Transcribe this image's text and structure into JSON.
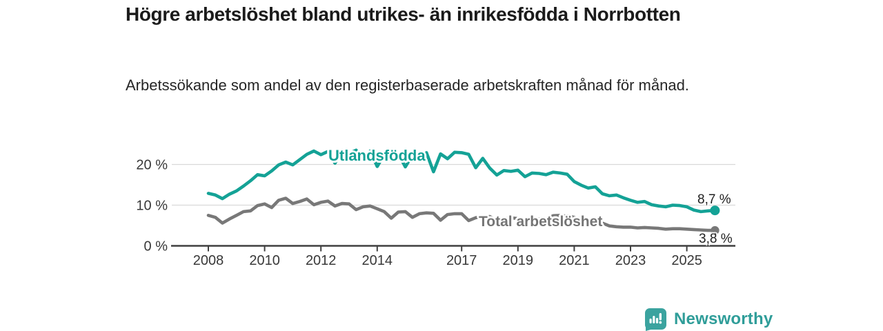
{
  "header": {
    "title": "Högre arbetslöshet bland utrikes- än inrikesfödda i Norrbotten",
    "subtitle": "Arbetssökande som andel av den registerbaserade arbetskraften månad för månad."
  },
  "colors": {
    "series1": "#14a296",
    "series2": "#787878",
    "grid": "#d9d9d9",
    "axis": "#3f3f3f",
    "tick_text": "#383838",
    "brand": "#2f9d99"
  },
  "chart_data": {
    "type": "line",
    "title": "Högre arbetslöshet bland utrikes- än inrikesfödda i Norrbotten",
    "xlabel": "",
    "ylabel": "",
    "grid": true,
    "legend_position": "inline-labels",
    "x_start": 2008,
    "x_step": 0.25,
    "x_ticks": [
      2008,
      2010,
      2012,
      2014,
      2017,
      2019,
      2021,
      2023,
      2025
    ],
    "y_ticks": [
      {
        "value": 0,
        "label": "0 %"
      },
      {
        "value": 10,
        "label": "10 %"
      },
      {
        "value": 20,
        "label": "20 %"
      }
    ],
    "ylim": [
      0,
      25.5
    ],
    "series": [
      {
        "name": "Utlandsfödda",
        "color": "#14a296",
        "end_label": "8,7 %",
        "end_value": 8.7,
        "values": [
          12.9,
          12.5,
          11.6,
          12.7,
          13.5,
          14.7,
          16.0,
          17.5,
          17.2,
          18.4,
          19.9,
          20.6,
          19.9,
          21.2,
          22.5,
          23.3,
          22.4,
          23.2,
          20.3,
          23.4,
          22.7,
          23.5,
          21.0,
          23.3,
          19.5,
          22.4,
          21.0,
          22.6,
          19.4,
          22.3,
          21.2,
          22.9,
          18.2,
          22.6,
          21.4,
          23.0,
          22.9,
          22.5,
          19.2,
          21.5,
          19.1,
          17.4,
          18.5,
          18.3,
          18.6,
          17.0,
          17.9,
          17.8,
          17.5,
          18.1,
          17.9,
          17.6,
          15.8,
          14.9,
          14.2,
          14.5,
          12.8,
          12.3,
          12.5,
          11.8,
          11.2,
          10.7,
          10.9,
          10.1,
          9.8,
          9.6,
          10.0,
          9.9,
          9.6,
          8.8,
          8.4,
          8.6,
          8.7
        ]
      },
      {
        "name": "Total arbetslöshet",
        "color": "#787878",
        "end_label": "3,8 %",
        "end_value": 3.8,
        "values": [
          7.5,
          7.0,
          5.6,
          6.6,
          7.5,
          8.4,
          8.6,
          9.9,
          10.3,
          9.4,
          11.2,
          11.7,
          10.4,
          10.9,
          11.5,
          10.1,
          10.7,
          11.0,
          9.8,
          10.4,
          10.3,
          8.9,
          9.6,
          9.8,
          9.1,
          8.4,
          6.8,
          8.3,
          8.4,
          7.0,
          7.9,
          8.1,
          8.0,
          6.3,
          7.7,
          7.9,
          7.9,
          6.2,
          6.9,
          7.3,
          7.2,
          6.1,
          6.6,
          6.9,
          6.7,
          5.9,
          6.3,
          6.6,
          6.6,
          7.4,
          7.5,
          7.3,
          7.0,
          6.6,
          6.3,
          6.0,
          5.6,
          4.9,
          4.7,
          4.6,
          4.6,
          4.4,
          4.5,
          4.4,
          4.3,
          4.1,
          4.2,
          4.2,
          4.1,
          4.0,
          3.9,
          3.8,
          3.8
        ]
      }
    ]
  },
  "footer": {
    "brand": "Newsworthy"
  }
}
